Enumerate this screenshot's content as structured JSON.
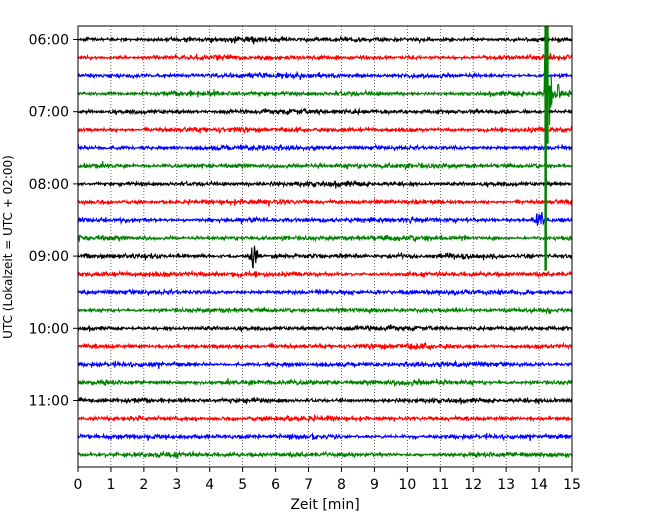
{
  "chart_data": {
    "type": "line",
    "xlabel": "Zeit  [min]",
    "ylabel": "UTC (Lokalzeit = UTC + 02:00)",
    "xlim": [
      0,
      15
    ],
    "x_ticks": [
      0,
      1,
      2,
      3,
      4,
      5,
      6,
      7,
      8,
      9,
      10,
      11,
      12,
      13,
      14,
      15
    ],
    "y_tick_labels": [
      "06:00",
      "07:00",
      "08:00",
      "09:00",
      "10:00",
      "11:00"
    ],
    "grid": {
      "vertical_dotted": true
    },
    "colors": [
      "#000000",
      "#ff0000",
      "#0000ff",
      "#008000"
    ],
    "trace_interval_min": 15,
    "trace_start_times": [
      "06:00",
      "06:15",
      "06:30",
      "06:45",
      "07:00",
      "07:15",
      "07:30",
      "07:45",
      "08:00",
      "08:15",
      "08:30",
      "08:45",
      "09:00",
      "09:15",
      "09:30",
      "09:45",
      "10:00",
      "10:15",
      "10:30",
      "10:45",
      "11:00",
      "11:15",
      "11:30",
      "11:45"
    ],
    "events": [
      {
        "trace_start": "06:45",
        "x_min": 14.2,
        "amplitude": "very large, clipped",
        "color": "#008000"
      },
      {
        "trace_start": "09:00",
        "x_min": 5.35,
        "amplitude": "small burst",
        "color": "#000000"
      },
      {
        "trace_start": "08:30",
        "x_min": 14.0,
        "amplitude": "small burst",
        "color": "#0000ff"
      }
    ]
  }
}
